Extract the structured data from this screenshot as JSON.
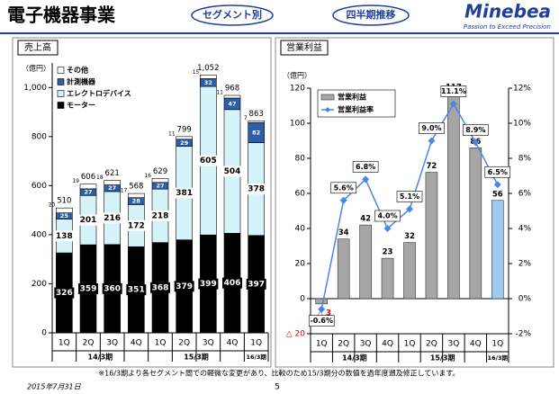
{
  "header": {
    "title": "電子機器事業",
    "badge_left": "セグメント別",
    "badge_right": "四半期推移",
    "logo": "Minebea",
    "tagline": "Passion to Exceed Precision"
  },
  "chart_data": [
    {
      "type": "stacked-bar",
      "panel_title": "売上高",
      "y_unit": "（億円）",
      "categories": [
        "1Q",
        "2Q",
        "3Q",
        "4Q",
        "1Q",
        "2Q",
        "3Q",
        "4Q",
        "1Q"
      ],
      "groups": [
        "14/3期",
        "15/3期",
        "16/3期"
      ],
      "series": [
        {
          "name": "モーター",
          "color": "#000000",
          "values": [
            326,
            359,
            360,
            351,
            368,
            379,
            399,
            406,
            397
          ]
        },
        {
          "name": "エレクトロデバイス",
          "color": "#d6f3fa",
          "values": [
            138,
            201,
            216,
            172,
            218,
            381,
            605,
            504,
            378
          ]
        },
        {
          "name": "計測機器",
          "color": "#2d5ea8",
          "values": [
            25,
            27,
            27,
            28,
            27,
            29,
            32,
            47,
            82
          ]
        },
        {
          "name": "その他",
          "color": "#ffffff",
          "values": [
            20,
            19,
            18,
            17,
            16,
            11,
            15,
            11,
            7
          ]
        }
      ],
      "totals": [
        510,
        606,
        621,
        568,
        629,
        799,
        {
          "value": 1052,
          "label": "1,052"
        },
        968,
        863
      ],
      "ylim": [
        0,
        1100
      ],
      "yticks": [
        0,
        200,
        400,
        600,
        800,
        {
          "value": 1000,
          "label": "1,000"
        }
      ],
      "legend": "top-left"
    },
    {
      "type": "bar-line",
      "panel_title": "営業利益",
      "y_unit": "（億円）",
      "categories": [
        "1Q",
        "2Q",
        "3Q",
        "4Q",
        "1Q",
        "2Q",
        "3Q",
        "4Q",
        "1Q"
      ],
      "groups": [
        "14/3期",
        "15/3期",
        "16/3期"
      ],
      "series": [
        {
          "name": "営業利益",
          "type": "bar",
          "colors": [
            "#a6a6a6",
            "#a6a6a6",
            "#a6a6a6",
            "#a6a6a6",
            "#a6a6a6",
            "#a6a6a6",
            "#a6a6a6",
            "#a6a6a6",
            "#9ecbf2"
          ],
          "values": [
            -3,
            34,
            42,
            23,
            32,
            72,
            117,
            86,
            56
          ],
          "value_labels": [
            "△ 3",
            "34",
            "42",
            "23",
            "32",
            "72",
            "117",
            "86",
            "56"
          ]
        },
        {
          "name": "営業利益率",
          "type": "line",
          "axis": "y2",
          "color": "#4a86e8",
          "values": [
            -0.6,
            5.6,
            6.8,
            4.0,
            5.1,
            9.0,
            11.1,
            8.9,
            6.5
          ],
          "value_labels": [
            "-0.6%",
            "5.6%",
            "6.8%",
            "4.0%",
            "5.1%",
            "9.0%",
            "11.1%",
            "8.9%",
            "6.5%"
          ]
        }
      ],
      "ylim": [
        -20,
        120
      ],
      "yticks": [
        {
          "value": -20,
          "label": "△ 20"
        },
        0,
        20,
        40,
        60,
        80,
        100,
        120
      ],
      "y2lim": [
        -2,
        12
      ],
      "y2ticks": [
        {
          "value": -2,
          "label": "-2%"
        },
        {
          "value": 0,
          "label": "0%"
        },
        {
          "value": 2,
          "label": "2%"
        },
        {
          "value": 4,
          "label": "4%"
        },
        {
          "value": 6,
          "label": "6%"
        },
        {
          "value": 8,
          "label": "8%"
        },
        {
          "value": 10,
          "label": "10%"
        },
        {
          "value": 12,
          "label": "12%"
        }
      ],
      "legend": "top-left"
    }
  ],
  "footnote": "※16/3期より各セグメント間での軽微な変更があり、比較のため15/3期分の数値を過年度遡及修正しています。",
  "date": "2015年7月31日",
  "page": "5"
}
